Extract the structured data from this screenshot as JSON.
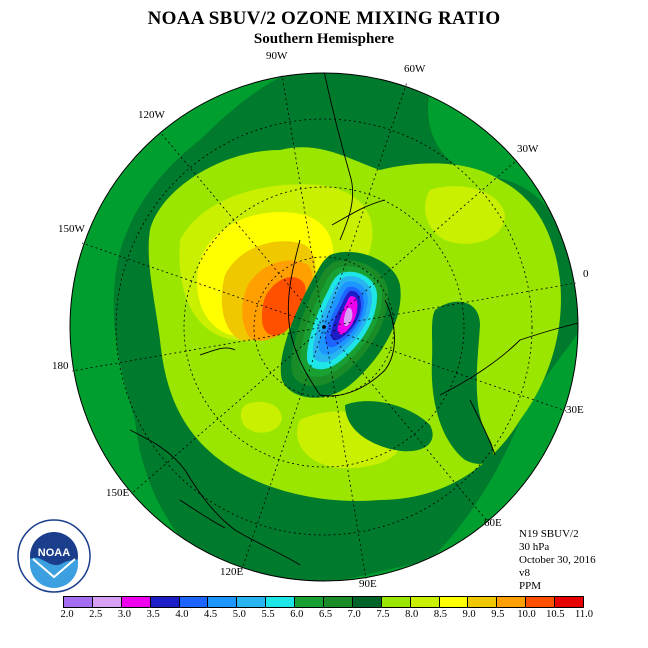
{
  "title": "NOAA SBUV/2 OZONE MIXING RATIO",
  "subtitle": "Southern Hemisphere",
  "longitude_labels": [
    "90W",
    "60W",
    "30W",
    "0",
    "30E",
    "60E",
    "90E",
    "120E",
    "150E",
    "180",
    "150W",
    "120W"
  ],
  "info": {
    "satellite": "N19 SBUV/2",
    "pressure": "30 hPa",
    "date": "October 30, 2016",
    "version": "v8",
    "units": "PPM"
  },
  "colorbar": {
    "ticks": [
      "2.0",
      "2.5",
      "3.0",
      "3.5",
      "4.0",
      "4.5",
      "5.0",
      "5.5",
      "6.0",
      "6.5",
      "7.0",
      "7.5",
      "8.0",
      "8.5",
      "9.0",
      "9.5",
      "10.0",
      "10.5",
      "11.0"
    ],
    "colors": [
      "#a56ef0",
      "#d7a0f5",
      "#ee00ee",
      "#1e1ec8",
      "#1e64ff",
      "#1e96ff",
      "#28b4f0",
      "#1ee6e6",
      "#19a032",
      "#198c28",
      "#006428",
      "#9be600",
      "#c8f000",
      "#ffff00",
      "#f0c800",
      "#ffa000",
      "#ff5000",
      "#e60000",
      "#8c5028"
    ]
  },
  "logo": {
    "text": "NOAA",
    "ring_text": "NATIONAL OCEANIC AND ATMOSPHERIC ADMINISTRATION · U.S. DEPARTMENT OF COMMERCE"
  }
}
